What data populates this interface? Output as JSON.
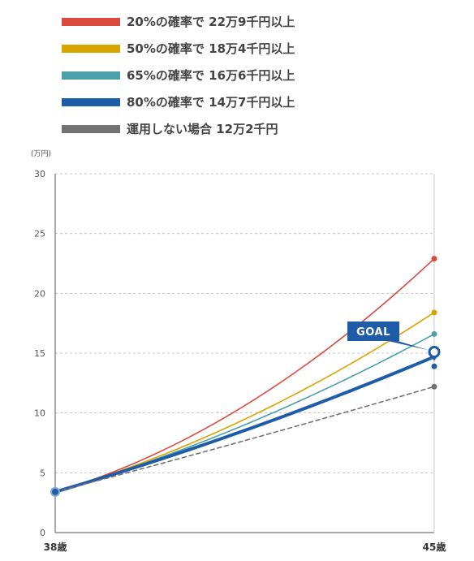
{
  "legend": [
    {
      "label": "20%の確率で 22万9千円以上",
      "color": "#db4a3f"
    },
    {
      "label": "50%の確率で 18万4千円以上",
      "color": "#d9a400"
    },
    {
      "label": "65%の確率で 16万6千円以上",
      "color": "#4ba0aa"
    },
    {
      "label": "80%の確率で 14万7千円以上",
      "color": "#1f5ca8"
    },
    {
      "label": "運用しない場合 12万2千円",
      "color": "#737373"
    }
  ],
  "chart_data": {
    "type": "line",
    "unit_label": "(万円)",
    "x_labels": [
      "38歳",
      "45歳"
    ],
    "ylim": [
      0,
      30
    ],
    "y_ticks": [
      "0",
      "5",
      "10",
      "15",
      "20",
      "25",
      "30"
    ],
    "grid": true,
    "goal_label": "GOAL",
    "goal_value": 15.1,
    "series": [
      {
        "name": "20%の確率で 22万9千円以上",
        "start": 3.4,
        "end": 22.9,
        "curvature": 0.52,
        "color": "#db4a3f",
        "style": "solid",
        "weight": "thin"
      },
      {
        "name": "50%の確率で 18万4千円以上",
        "start": 3.4,
        "end": 18.4,
        "curvature": 0.38,
        "color": "#d9a400",
        "style": "solid",
        "weight": "thin"
      },
      {
        "name": "65%の確率で 16万6千円以上",
        "start": 3.4,
        "end": 16.6,
        "curvature": 0.3,
        "color": "#4ba0aa",
        "style": "solid",
        "weight": "thin"
      },
      {
        "name": "80%の確率で 14万7千円以上",
        "start": 3.4,
        "end": 14.7,
        "curvature": 0.18,
        "color": "#1f5ca8",
        "style": "solid",
        "weight": "thick"
      },
      {
        "name": "運用しない場合 12万2千円",
        "start": 3.4,
        "end": 12.2,
        "curvature": 0.05,
        "color": "#737373",
        "style": "dashed",
        "weight": "thin"
      }
    ],
    "extra_point": {
      "value": 13.9,
      "color": "#1f5ca8"
    }
  }
}
